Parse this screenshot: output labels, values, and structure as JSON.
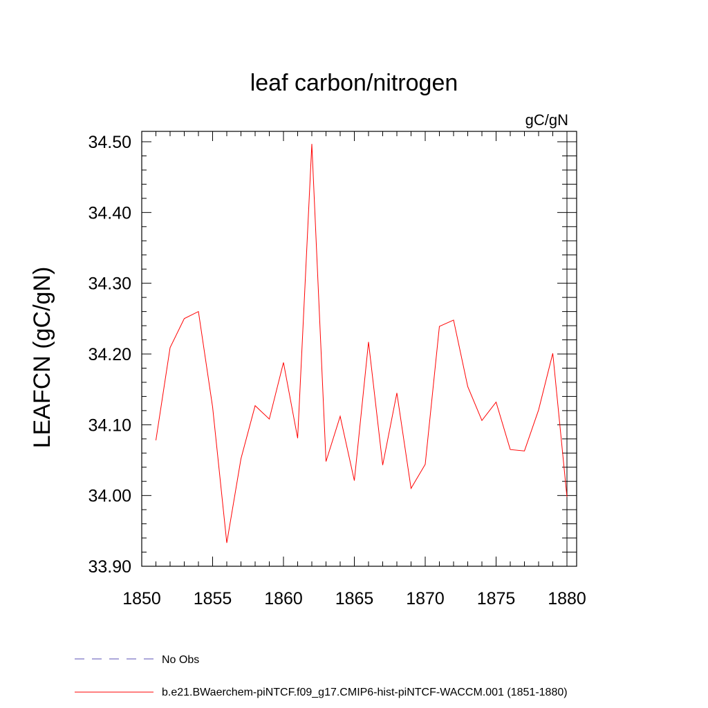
{
  "chart_data": {
    "type": "line",
    "title": "leaf carbon/nitrogen",
    "units": "gC/gN",
    "ylabel": "LEAFCN  (gC/gN)",
    "xlabel": "",
    "xlim": [
      1850,
      1880
    ],
    "ylim": [
      33.9,
      34.5
    ],
    "x_ticks": [
      1850,
      1855,
      1860,
      1865,
      1870,
      1875,
      1880
    ],
    "x_tick_labels": [
      "1850",
      "1855",
      "1860",
      "1865",
      "1870",
      "1875",
      "1880"
    ],
    "y_ticks": [
      33.9,
      34.0,
      34.1,
      34.2,
      34.3,
      34.4,
      34.5
    ],
    "y_tick_labels": [
      "33.90",
      "34.00",
      "34.10",
      "34.20",
      "34.30",
      "34.40",
      "34.50"
    ],
    "grid": false,
    "legend_position": "bottom-left",
    "series": [
      {
        "name": "b.e21.BWaerchem-piNTCF.f09_g17.CMIP6-hist-piNTCF-WACCM.001 (1851-1880)",
        "color": "#ff0000",
        "style": "solid",
        "x": [
          1851,
          1852,
          1853,
          1854,
          1855,
          1856,
          1857,
          1858,
          1859,
          1860,
          1861,
          1862,
          1863,
          1864,
          1865,
          1866,
          1867,
          1868,
          1869,
          1870,
          1871,
          1872,
          1873,
          1874,
          1875,
          1876,
          1877,
          1878,
          1879,
          1880
        ],
        "values": [
          34.078,
          34.209,
          34.25,
          34.26,
          34.125,
          33.933,
          34.052,
          34.127,
          34.108,
          34.188,
          34.081,
          34.497,
          34.048,
          34.112,
          34.021,
          34.217,
          34.043,
          34.145,
          34.01,
          34.044,
          34.239,
          34.248,
          34.154,
          34.106,
          34.132,
          34.065,
          34.063,
          34.121,
          34.201,
          33.998
        ]
      }
    ],
    "legend": [
      {
        "label": "No Obs",
        "color": "#5a4fb5",
        "style": "dashed"
      },
      {
        "label": "b.e21.BWaerchem-piNTCF.f09_g17.CMIP6-hist-piNTCF-WACCM.001 (1851-1880)",
        "color": "#ff0000",
        "style": "solid"
      }
    ]
  }
}
